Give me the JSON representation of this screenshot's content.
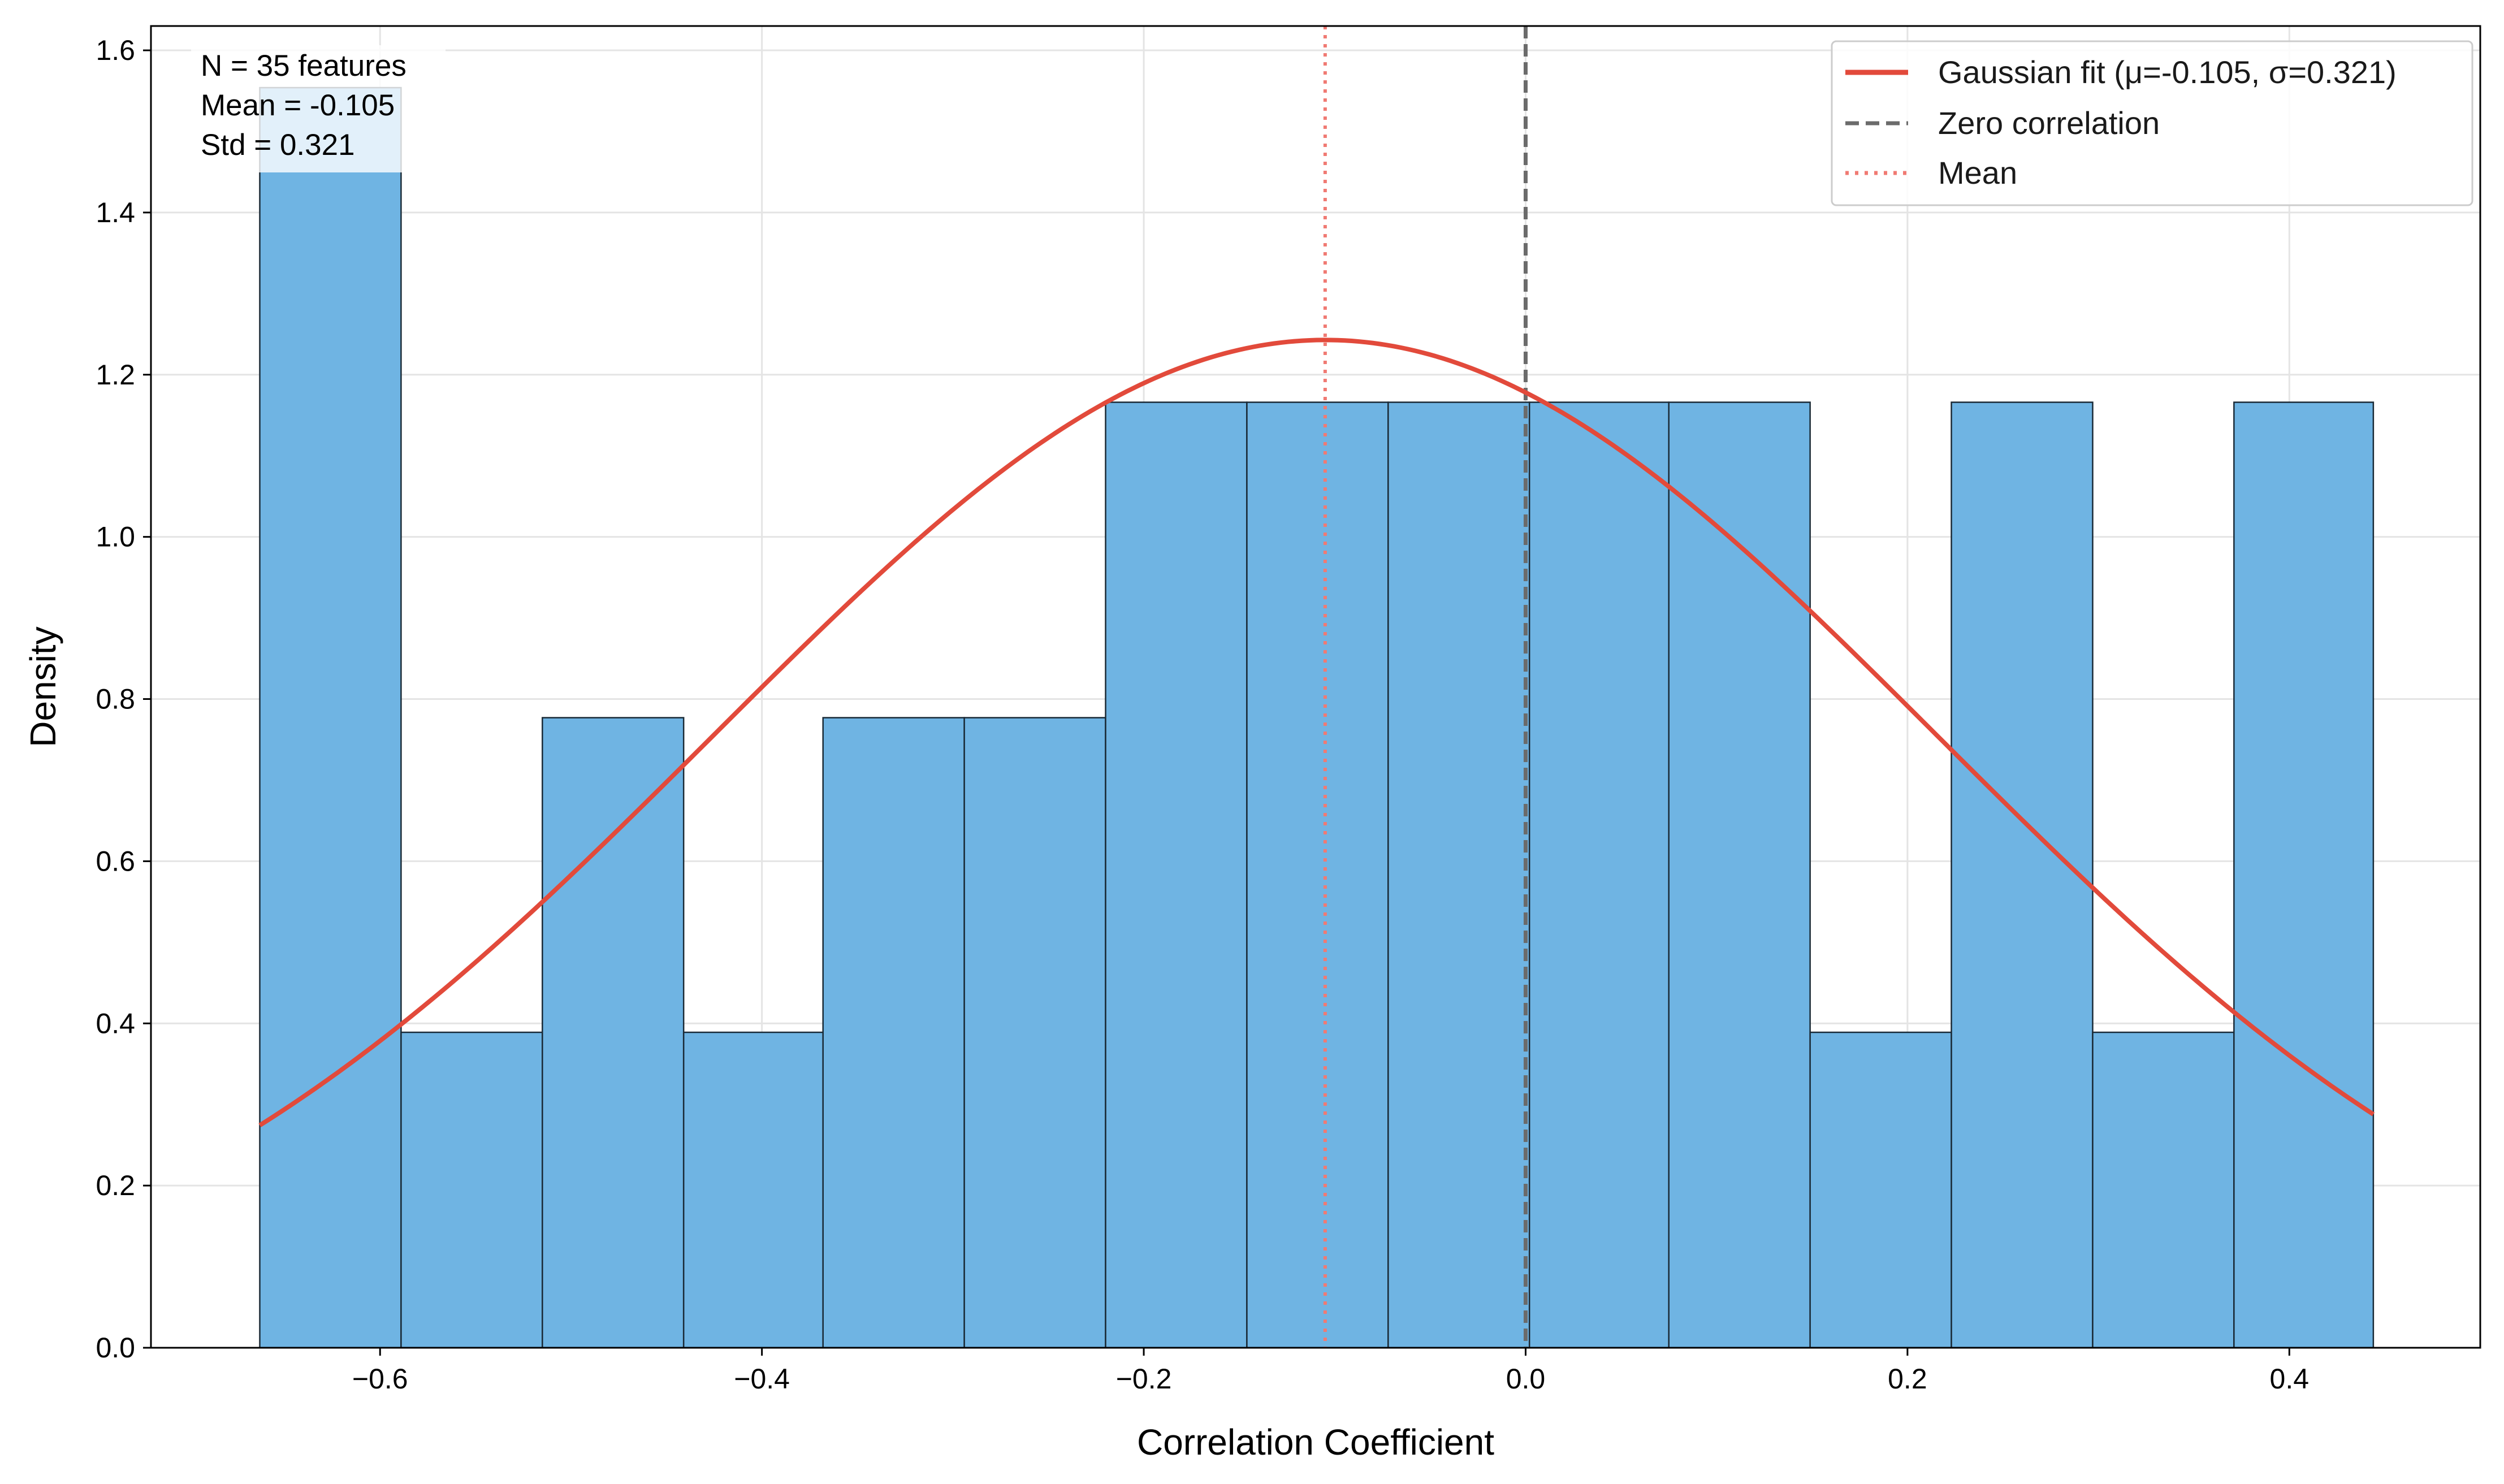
{
  "chart_data": {
    "type": "bar",
    "subtype": "histogram",
    "xlabel": "Correlation Coefficient",
    "ylabel": "Density",
    "xlim": [
      -0.72,
      0.5
    ],
    "ylim": [
      0.0,
      1.63
    ],
    "xticks": [
      -0.6,
      -0.4,
      -0.2,
      0.0,
      0.2,
      0.4
    ],
    "xtick_labels": [
      "−0.6",
      "−0.4",
      "−0.2",
      "0.0",
      "0.2",
      "0.4"
    ],
    "yticks": [
      0.0,
      0.2,
      0.4,
      0.6,
      0.8,
      1.0,
      1.2,
      1.4,
      1.6
    ],
    "ytick_labels": [
      "0.0",
      "0.2",
      "0.4",
      "0.6",
      "0.8",
      "1.0",
      "1.2",
      "1.4",
      "1.6"
    ],
    "grid": true,
    "bins": [
      {
        "x0": -0.663,
        "x1": -0.589,
        "density": 1.554
      },
      {
        "x0": -0.589,
        "x1": -0.515,
        "density": 0.389
      },
      {
        "x0": -0.515,
        "x1": -0.441,
        "density": 0.777
      },
      {
        "x0": -0.441,
        "x1": -0.368,
        "density": 0.389
      },
      {
        "x0": -0.368,
        "x1": -0.294,
        "density": 0.777
      },
      {
        "x0": -0.294,
        "x1": -0.22,
        "density": 0.777
      },
      {
        "x0": -0.22,
        "x1": -0.146,
        "density": 1.166
      },
      {
        "x0": -0.146,
        "x1": -0.072,
        "density": 1.166
      },
      {
        "x0": -0.072,
        "x1": 0.002,
        "density": 1.166
      },
      {
        "x0": 0.002,
        "x1": 0.075,
        "density": 1.166
      },
      {
        "x0": 0.075,
        "x1": 0.149,
        "density": 1.166
      },
      {
        "x0": 0.149,
        "x1": 0.223,
        "density": 0.389
      },
      {
        "x0": 0.223,
        "x1": 0.297,
        "density": 1.166
      },
      {
        "x0": 0.297,
        "x1": 0.371,
        "density": 0.389
      },
      {
        "x0": 0.371,
        "x1": 0.444,
        "density": 1.166
      }
    ],
    "bar_color": "#6fb4e3",
    "bar_edge_color": "#1a2a36",
    "gaussian_fit": {
      "mu": -0.105,
      "sigma": 0.321,
      "x_range": [
        -0.663,
        0.444
      ],
      "color": "#e24a3b"
    },
    "reference_lines": [
      {
        "name": "Zero correlation",
        "x": 0.0,
        "style": "dashed",
        "color": "#6b6b6b"
      },
      {
        "name": "Mean",
        "x": -0.105,
        "style": "dotted",
        "color": "#f07a73"
      }
    ],
    "legend": {
      "position": "top-right",
      "entries": [
        {
          "label": "Gaussian fit (μ=-0.105, σ=0.321)",
          "style": "solid",
          "color": "#e24a3b"
        },
        {
          "label": "Zero correlation",
          "style": "dashed",
          "color": "#6b6b6b"
        },
        {
          "label": "Mean",
          "style": "dotted",
          "color": "#f07a73"
        }
      ]
    },
    "annotation": {
      "position": "top-left",
      "lines": [
        "N = 35 features",
        "Mean = -0.105",
        "Std = 0.321"
      ]
    }
  }
}
